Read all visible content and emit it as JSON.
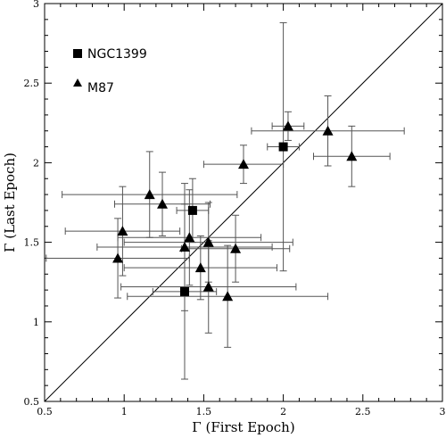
{
  "chart_data": {
    "type": "scatter",
    "title": "",
    "xlabel": "Γ (First Epoch)",
    "ylabel": "Γ (Last Epoch)",
    "xlim": [
      0.5,
      3
    ],
    "ylim": [
      0.5,
      3
    ],
    "xticks": [
      "0.5",
      "1",
      "1.5",
      "2",
      "2.5",
      "3"
    ],
    "yticks": [
      "0.5",
      "1",
      "1.5",
      "2",
      "2.5",
      "3"
    ],
    "reference_line": "y = x",
    "legend_position": "top-left",
    "series": [
      {
        "name": "NGC1399",
        "marker": "square",
        "points": [
          {
            "x": 1.38,
            "y": 1.19,
            "xerr": 0.2,
            "yerr": 0.55
          },
          {
            "x": 1.43,
            "y": 1.7,
            "xerr": 0.1,
            "yerr": 0.2
          },
          {
            "x": 2.0,
            "y": 2.1,
            "xerr": 0.1,
            "yerr": 0.78
          }
        ]
      },
      {
        "name": "M87",
        "marker": "triangle",
        "points": [
          {
            "x": 0.96,
            "y": 1.4,
            "xerr": 0.45,
            "yerr": 0.25
          },
          {
            "x": 0.99,
            "y": 1.57,
            "xerr": 0.36,
            "yerr": 0.28
          },
          {
            "x": 1.16,
            "y": 1.8,
            "xerr": 0.55,
            "yerr": 0.27
          },
          {
            "x": 1.24,
            "y": 1.74,
            "xerr": 0.3,
            "yerr": 0.2
          },
          {
            "x": 1.38,
            "y": 1.47,
            "xerr": 0.55,
            "yerr": 0.4
          },
          {
            "x": 1.41,
            "y": 1.53,
            "xerr": 0.45,
            "yerr": 0.3
          },
          {
            "x": 1.48,
            "y": 1.34,
            "xerr": 0.48,
            "yerr": 0.2
          },
          {
            "x": 1.53,
            "y": 1.5,
            "xerr": 0.53,
            "yerr": 0.25
          },
          {
            "x": 1.53,
            "y": 1.22,
            "xerr": 0.55,
            "yerr": 0.29
          },
          {
            "x": 1.65,
            "y": 1.16,
            "xerr": 0.63,
            "yerr": 0.32
          },
          {
            "x": 1.7,
            "y": 1.46,
            "xerr": 0.34,
            "yerr": 0.21
          },
          {
            "x": 1.75,
            "y": 1.99,
            "xerr": 0.25,
            "yerr": 0.12
          },
          {
            "x": 2.03,
            "y": 2.23,
            "xerr": 0.1,
            "yerr": 0.09
          },
          {
            "x": 2.28,
            "y": 2.2,
            "xerr": 0.48,
            "yerr": 0.22
          },
          {
            "x": 2.43,
            "y": 2.04,
            "xerr": 0.24,
            "yerr": 0.19
          }
        ]
      }
    ]
  },
  "legend": {
    "ngc1399_label": "NGC1399",
    "m87_label": "M87"
  }
}
